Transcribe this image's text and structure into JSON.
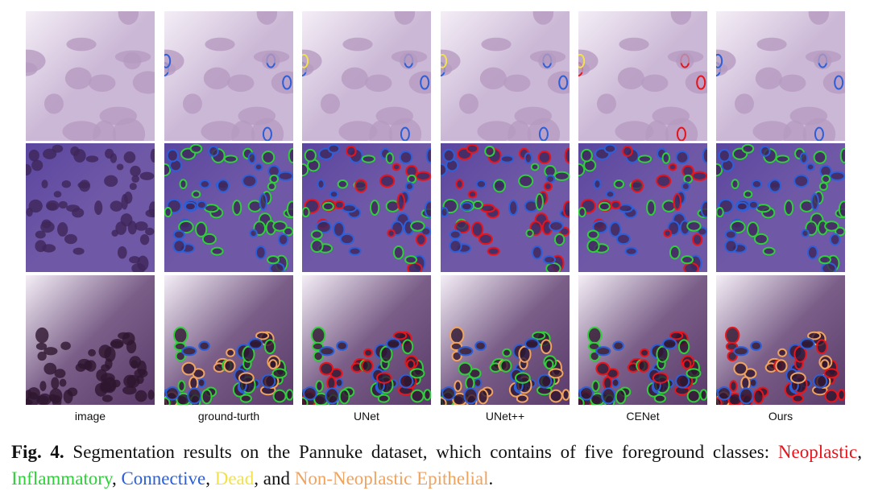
{
  "figure": {
    "columns": [
      "image",
      "ground-turth",
      "UNet",
      "UNet++",
      "CENet",
      "Ours"
    ],
    "caption": {
      "label": "Fig. 4.",
      "text": "Segmentation results on the Pannuke dataset, which contains of five foreground classes:",
      "classes": [
        {
          "name": "Neoplastic",
          "color": "#e8141b",
          "after": ","
        },
        {
          "name": "Inflammatory",
          "color": "#2fcf3a",
          "after": ","
        },
        {
          "name": "Connective",
          "color": "#2c5fd8",
          "after": ","
        },
        {
          "name": "Dead",
          "color": "#f2e24a",
          "after": ", and"
        },
        {
          "name": "Non-Neoplastic Epithelial",
          "color": "#f0a35e",
          "after": "."
        }
      ]
    }
  }
}
